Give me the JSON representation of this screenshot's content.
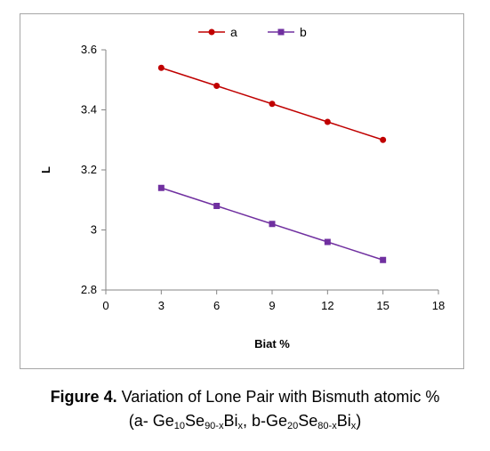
{
  "chart_data": {
    "type": "line",
    "xlabel": "Biat %",
    "ylabel": "L",
    "x_ticks": [
      "0",
      "3",
      "6",
      "9",
      "12",
      "15",
      "18"
    ],
    "y_ticks": [
      "2.8",
      "3",
      "3.2",
      "3.4",
      "3.6"
    ],
    "xlim": [
      0,
      18
    ],
    "ylim": [
      2.8,
      3.6
    ],
    "grid": false,
    "legend_position": "top",
    "x": [
      3,
      6,
      9,
      12,
      15
    ],
    "series": [
      {
        "name": "a",
        "values": [
          3.54,
          3.48,
          3.42,
          3.36,
          3.3
        ],
        "color": "#c00000",
        "marker": "circle"
      },
      {
        "name": "b",
        "values": [
          3.14,
          3.08,
          3.02,
          2.96,
          2.9
        ],
        "color": "#7030a0",
        "marker": "square"
      }
    ]
  },
  "caption": {
    "label": "Figure 4.",
    "line1_text": " Variation of Lone Pair with Bismuth atomic %",
    "open": "(a- Ge",
    "a_ge_sub": "10",
    "a_se": "Se",
    "a_se_sub": "90-x",
    "a_bi": "Bi",
    "a_bi_sub": "x",
    "mid": ", b-Ge",
    "b_ge_sub": "20",
    "b_se": "Se",
    "b_se_sub": "80-x",
    "b_bi": "Bi",
    "b_bi_sub": "x",
    "close": ")"
  }
}
